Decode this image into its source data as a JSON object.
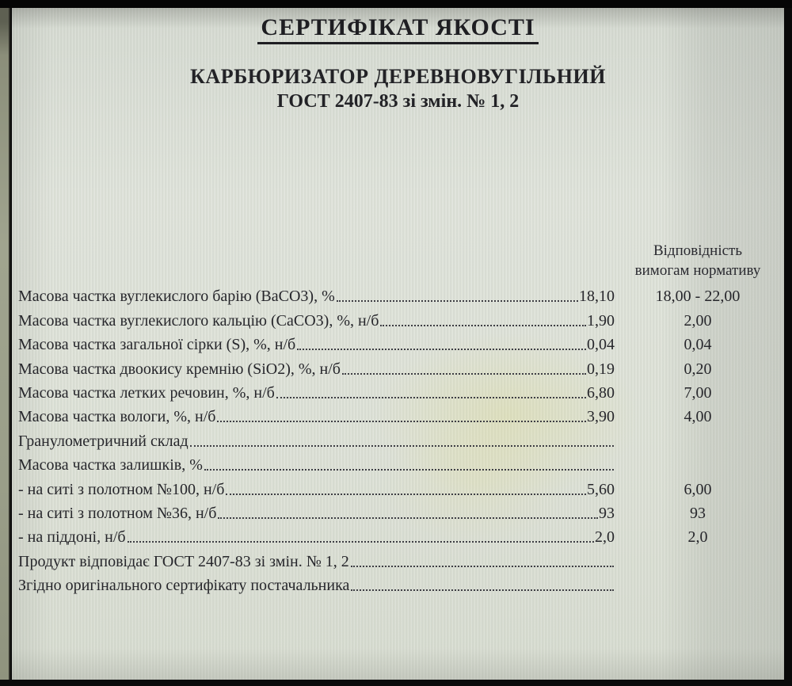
{
  "certificate": {
    "title": "СЕРТИФІКАТ ЯКОСТІ",
    "product": "КАРБЮРИЗАТОР ДЕРЕВНОВУГІЛЬНИЙ",
    "standard": "ГОСТ 2407-83 зі змін. № 1, 2",
    "norm_header": {
      "line1": "Відповідність",
      "line2": "вимогам нормативу"
    },
    "rows": [
      {
        "label": "Масова частка вуглекислого барію (BaCO3), %",
        "value": "18,10",
        "norm": "18,00 - 22,00"
      },
      {
        "label": "Масова частка вуглекислого кальцію (CaCO3), %, н/б",
        "value": "1,90",
        "norm": "2,00"
      },
      {
        "label": "Масова частка загальної сірки (S), %, н/б",
        "value": "0,04",
        "norm": "0,04"
      },
      {
        "label": "Масова частка двоокису кремнію (SiO2), %, н/б",
        "value": "0,19",
        "norm": "0,20"
      },
      {
        "label": "Масова частка летких речовин, %, н/б",
        "value": "6,80",
        "norm": "7,00"
      },
      {
        "label": "Масова частка вологи, %, н/б",
        "value": "3,90",
        "norm": "4,00"
      },
      {
        "label": "Гранулометричний склад",
        "value": "",
        "norm": ""
      },
      {
        "label": "Масова частка залишків, %",
        "value": "",
        "norm": ""
      },
      {
        "label": "- на ситі з полотном №100, н/б",
        "value": "5,60",
        "norm": "6,00"
      },
      {
        "label": "- на ситі з полотном №36, н/б",
        "value": "93",
        "norm": "93"
      },
      {
        "label": "- на піддоні, н/б",
        "value": "2,0",
        "norm": "2,0"
      },
      {
        "label": "Продукт відповідає ГОСТ 2407-83 зі змін. № 1, 2",
        "value": "",
        "norm": ""
      },
      {
        "label": "Згідно оригінального сертифікату постачальника",
        "value": "",
        "norm": ""
      }
    ]
  }
}
